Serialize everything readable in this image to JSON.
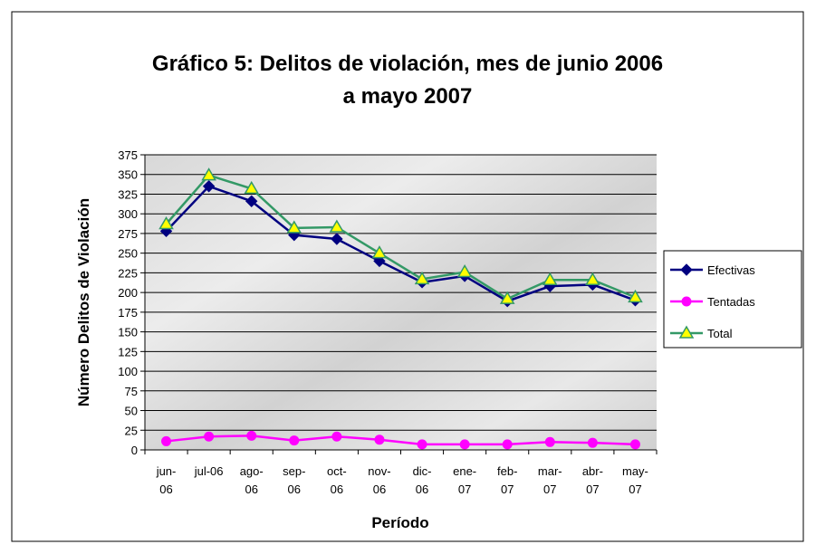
{
  "chart_data": {
    "type": "line",
    "title": [
      "Gráfico 5: Delitos de violación, mes de junio 2006",
      "a mayo 2007"
    ],
    "x_label": "Período",
    "y_label": "Número Delitos de Violación",
    "categories": [
      "jun-06",
      "jul-06",
      "ago-06",
      "sep-06",
      "oct-06",
      "nov-06",
      "dic-06",
      "ene-07",
      "feb-07",
      "mar-07",
      "abr-07",
      "may-07"
    ],
    "series": [
      {
        "name": "Efectivas",
        "color": "#000080",
        "marker": "diamond",
        "values": [
          278,
          335,
          316,
          273,
          268,
          240,
          213,
          221,
          189,
          208,
          210,
          190
        ]
      },
      {
        "name": "Tentadas",
        "color": "#ff00ff",
        "marker": "circle",
        "values": [
          11,
          17,
          18,
          12,
          17,
          13,
          7,
          7,
          7,
          10,
          9,
          7
        ]
      },
      {
        "name": "Total",
        "color": "#339966",
        "marker": "triangle",
        "values": [
          287,
          349,
          332,
          282,
          283,
          250,
          217,
          226,
          192,
          216,
          216,
          194
        ]
      }
    ],
    "ylim": [
      0,
      375
    ],
    "yticks": [
      0,
      25,
      50,
      75,
      100,
      125,
      150,
      175,
      200,
      225,
      250,
      275,
      300,
      325,
      350,
      375
    ],
    "grid": true,
    "legend": "right"
  }
}
